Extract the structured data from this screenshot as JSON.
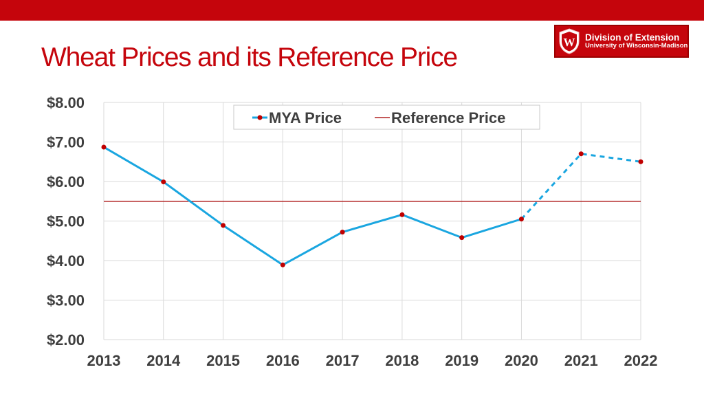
{
  "slide": {
    "title": "Wheat Prices and its Reference Price"
  },
  "logo": {
    "line1": "Division of Extension",
    "line2": "University of Wisconsin-Madison",
    "crest_letter": "W",
    "icon": "uw-crest-icon"
  },
  "colors": {
    "brand_red": "#c5050c",
    "mya_line": "#1aa6e0",
    "marker": "#c00000",
    "reference_line": "#b22222",
    "grid": "#d9d9d9"
  },
  "chart_data": {
    "type": "line",
    "title": "",
    "xlabel": "",
    "ylabel": "",
    "x": [
      2013,
      2014,
      2015,
      2016,
      2017,
      2018,
      2019,
      2020,
      2021,
      2022
    ],
    "ylim": [
      2.0,
      8.0
    ],
    "y_ticks": [
      "$2.00",
      "$3.00",
      "$4.00",
      "$5.00",
      "$6.00",
      "$7.00",
      "$8.00"
    ],
    "x_ticks": [
      "2013",
      "2014",
      "2015",
      "2016",
      "2017",
      "2018",
      "2019",
      "2020",
      "2021",
      "2022"
    ],
    "grid": true,
    "legend": "top-center",
    "series": [
      {
        "name": "MYA Price",
        "values": [
          6.87,
          5.99,
          4.89,
          3.89,
          4.72,
          5.16,
          4.58,
          5.05,
          6.7,
          6.5
        ],
        "style": "solid with markers; dashed from 2020 onward (projected)"
      },
      {
        "name": "Reference Price",
        "values": [
          5.5,
          5.5,
          5.5,
          5.5,
          5.5,
          5.5,
          5.5,
          5.5,
          5.5,
          5.5
        ],
        "style": "solid"
      }
    ]
  }
}
